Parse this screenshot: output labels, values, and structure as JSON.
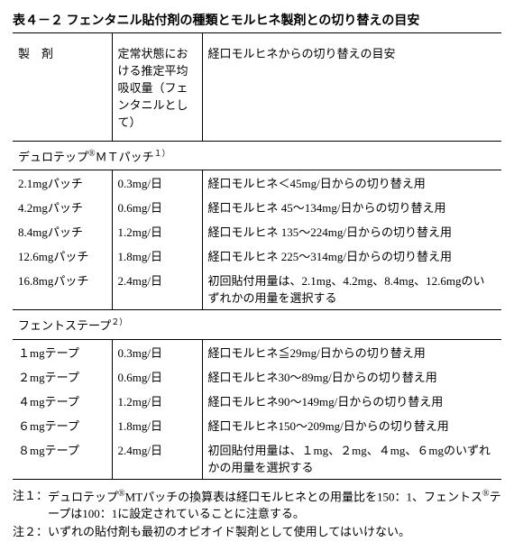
{
  "title": "表４－２ フェンタニル貼付剤の種類とモルヒネ製剤との切り替えの目安",
  "header": {
    "col1": "製　剤",
    "col2": "定常状態における推定平均吸収量（フェンタニルとして）",
    "col3": "経口モルヒネからの切り替えの目安"
  },
  "section1": {
    "name_a": "デュロテップ",
    "name_reg": "®",
    "name_b": "ＭＴパッチ",
    "name_sup": "１）",
    "rows": [
      {
        "c1": "2.1mgパッチ",
        "c2": "0.3mg/日",
        "c3": "経口モルヒネ＜45mg/日からの切り替え用"
      },
      {
        "c1": "4.2mgパッチ",
        "c2": "0.6mg/日",
        "c3": "経口モルヒネ 45～134mg/日からの切り替え用"
      },
      {
        "c1": "8.4mgパッチ",
        "c2": "1.2mg/日",
        "c3": "経口モルヒネ 135～224mg/日からの切り替え用"
      },
      {
        "c1": "12.6mgパッチ",
        "c2": "1.8mg/日",
        "c3": "経口モルヒネ 225～314mg/日からの切り替え用"
      },
      {
        "c1": "16.8mgパッチ",
        "c2": "2.4mg/日",
        "c3": "初回貼付用量は、2.1mg、4.2mg、8.4mg、12.6mgのいずれかの用量を選択する"
      }
    ]
  },
  "section2": {
    "name": "フェントステープ",
    "name_sup": "２）",
    "rows": [
      {
        "c1": "１mgテープ",
        "c2": "0.3mg/日",
        "c3": "経口モルヒネ≦29mg/日からの切り替え用"
      },
      {
        "c1": "２mgテープ",
        "c2": "0.6mg/日",
        "c3": "経口モルヒネ30～89mg/日からの切り替え用"
      },
      {
        "c1": "４mgテープ",
        "c2": "1.2mg/日",
        "c3": "経口モルヒネ90～149mg/日からの切り替え用"
      },
      {
        "c1": "６mgテープ",
        "c2": "1.8mg/日",
        "c3": "経口モルヒネ150～209mg/日からの切り替え用"
      },
      {
        "c1": "８mgテープ",
        "c2": "2.4mg/日",
        "c3": "初回貼付用量は、１mg、２mg、４mg、６mgのいずれかの用量を選択する"
      }
    ]
  },
  "notes": {
    "n1_label": "注１：",
    "n1_a": "デュロテップ",
    "n1_reg1": "®",
    "n1_b": "MTパッチの換算表は経口モルヒネとの用量比を150：1、フェントス",
    "n1_reg2": "®",
    "n1_c": "テープは100：1に設定されていることに注意する。",
    "n2_label": "注２：",
    "n2": "いずれの貼付剤も最初のオピオイド製剤として使用してはいけない。"
  }
}
